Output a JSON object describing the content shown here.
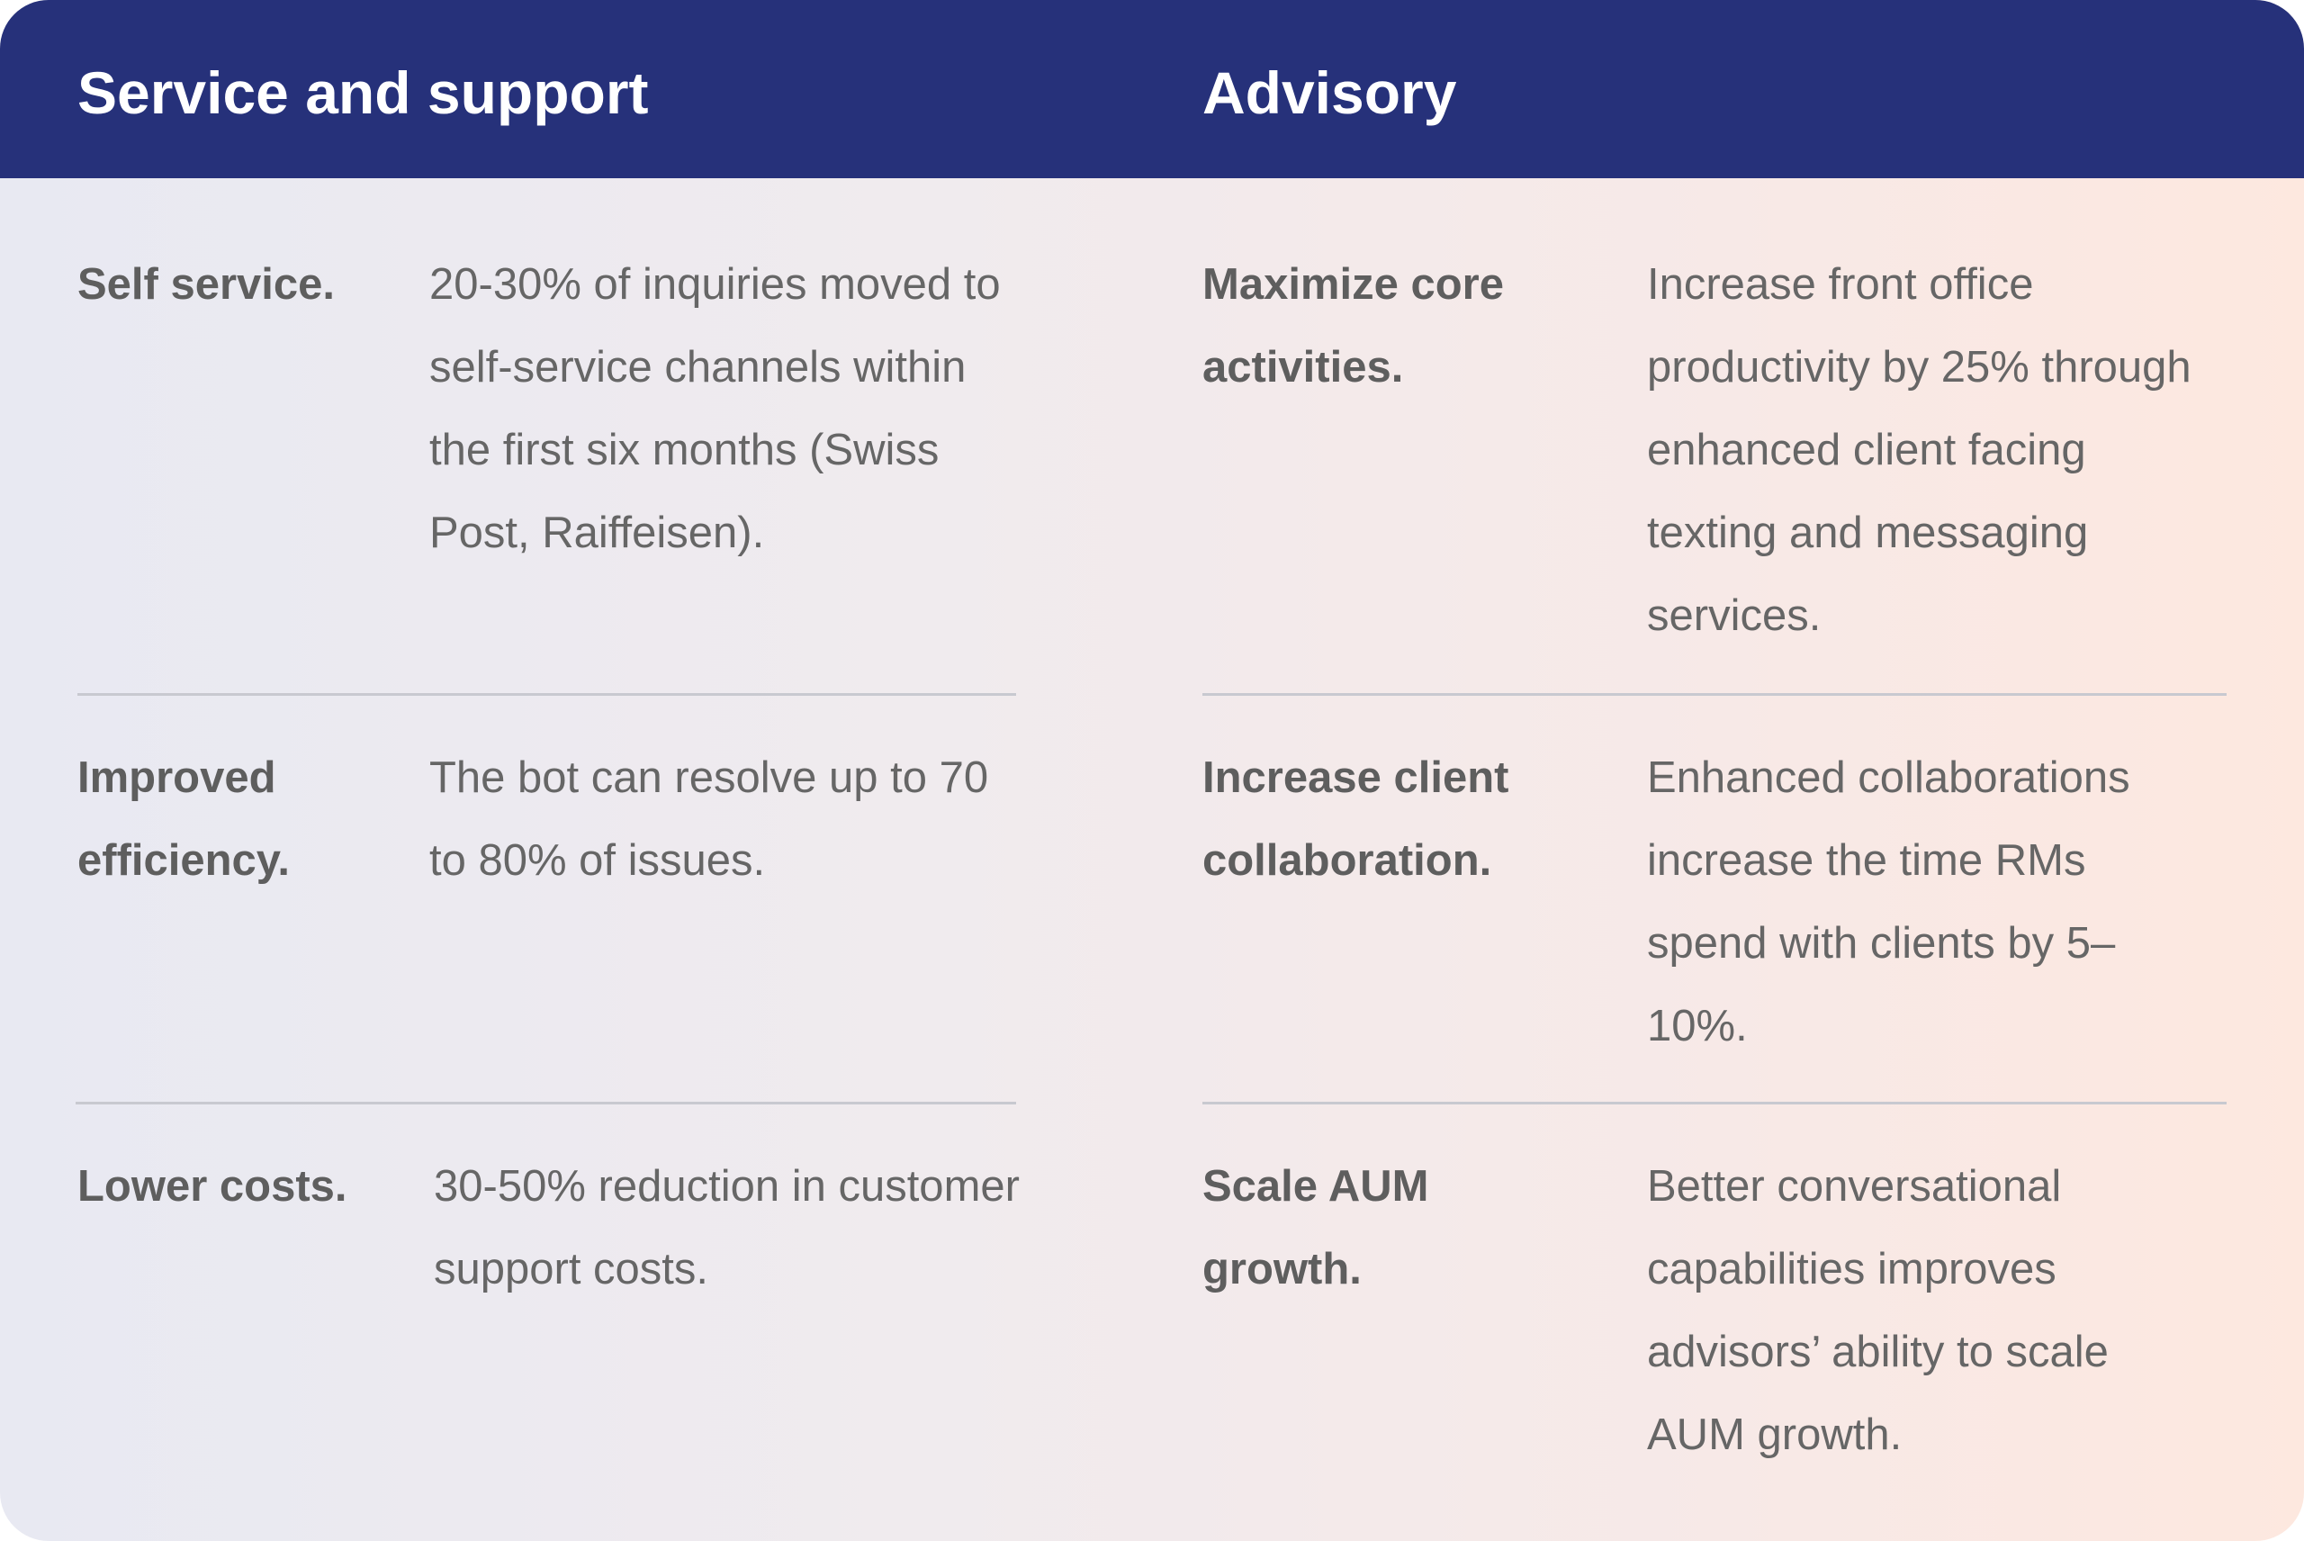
{
  "columns": [
    {
      "title": "Service and support",
      "rows": [
        {
          "label": "Self service.",
          "text": "20-30% of inquiries moved to self-service channels within the first six months (Swiss Post, Raiffeisen)."
        },
        {
          "label": "Improved efficiency.",
          "text": "The bot can resolve up to 70 to 80% of issues."
        },
        {
          "label": "Lower costs.",
          "text": "30-50% reduction in customer support costs."
        }
      ]
    },
    {
      "title": "Advisory",
      "rows": [
        {
          "label": "Maximize core activities.",
          "text": "Increase front office productivity by 25% through enhanced client facing texting and messaging services."
        },
        {
          "label": "Increase client collaboration.",
          "text": "Enhanced collaborations increase the time RMs spend with clients by 5–10%."
        },
        {
          "label": "Scale AUM growth.",
          "text": "Better conversational capabilities improves advisors’ ability to scale AUM growth."
        }
      ]
    }
  ],
  "colors": {
    "header_background": "#26317a",
    "header_text": "#ffffff",
    "label_text": "#5e5e5e",
    "body_text": "#666666",
    "divider": "#c8c9d0"
  }
}
